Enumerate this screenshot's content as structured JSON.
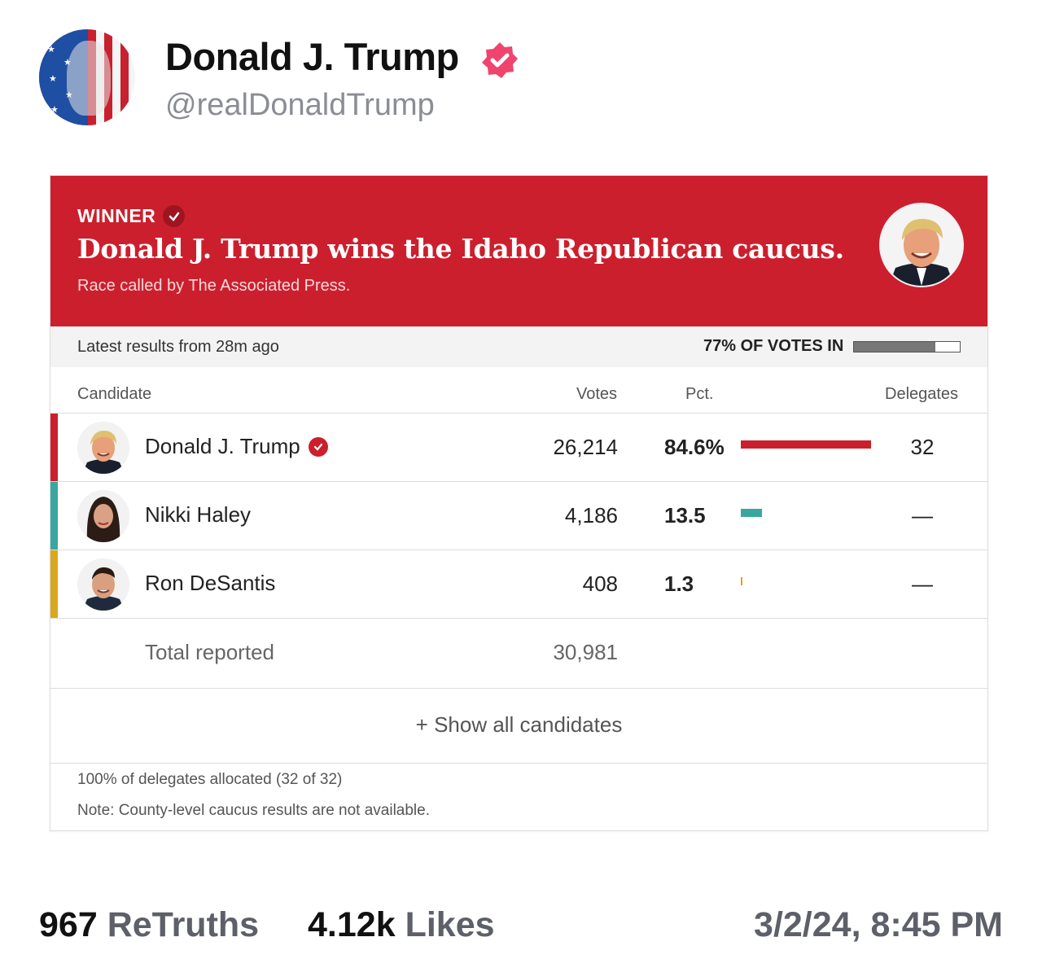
{
  "author": {
    "display_name": "Donald J. Trump",
    "handle": "@realDonaldTrump"
  },
  "card": {
    "winner_label": "WINNER",
    "headline": "Donald J. Trump wins the Idaho Republican caucus.",
    "called_by": "Race called by The Associated Press.",
    "latest_results": "Latest results from 28m ago",
    "votes_in_label": "77% OF VOTES IN",
    "votes_in_fraction": 0.77,
    "columns": {
      "candidate": "Candidate",
      "votes": "Votes",
      "pct": "Pct.",
      "delegates": "Delegates"
    },
    "candidates": [
      {
        "name": "Donald J. Trump",
        "votes": "26,214",
        "pct": "84.6%",
        "pct_value": 84.6,
        "delegates": "32",
        "color": "#cc1f2d",
        "winner": true
      },
      {
        "name": "Nikki Haley",
        "votes": "4,186",
        "pct": "13.5",
        "pct_value": 13.5,
        "delegates": "—",
        "color": "#3aa6a0",
        "winner": false
      },
      {
        "name": "Ron DeSantis",
        "votes": "408",
        "pct": "1.3",
        "pct_value": 1.3,
        "delegates": "—",
        "color": "#d9a81c",
        "winner": false
      }
    ],
    "total_label": "Total reported",
    "total_votes": "30,981",
    "show_all": "+ Show all candidates",
    "delegates_note": "100% of delegates allocated (32 of 32)",
    "county_note": "Note: County-level caucus results are not available."
  },
  "stats": {
    "retruths_count": "967",
    "retruths_label": "ReTruths",
    "likes_count": "4.12k",
    "likes_label": "Likes",
    "timestamp": "3/2/24, 8:45 PM"
  },
  "colors": {
    "banner_red": "#cc1f2d",
    "verified_pink": "#f0436e"
  }
}
